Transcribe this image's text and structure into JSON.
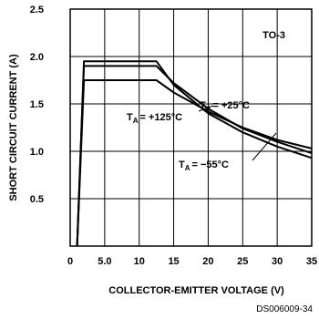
{
  "chart_data": {
    "type": "line",
    "title": "",
    "xlabel": "COLLECTOR-EMITTER VOLTAGE (V)",
    "ylabel": "SHORT CIRCUIT CURRENT (A)",
    "xlim": [
      0,
      35
    ],
    "ylim": [
      0,
      2.5
    ],
    "x_ticks": [
      0,
      5,
      10,
      15,
      20,
      25,
      30,
      35
    ],
    "x_tick_labels": [
      "0",
      "5.0",
      "10",
      "15",
      "20",
      "25",
      "30",
      "35"
    ],
    "y_ticks": [
      0,
      0.5,
      1.0,
      1.5,
      2.0,
      2.5
    ],
    "y_tick_labels": [
      "",
      "0.5",
      "1.0",
      "1.5",
      "2.0",
      "2.5"
    ],
    "grid": true,
    "package_label": "TO-3",
    "series": [
      {
        "name": "-55°C",
        "x": [
          1,
          2,
          12.5,
          15,
          20,
          25,
          30,
          35
        ],
        "y": [
          0,
          1.95,
          1.95,
          1.7,
          1.4,
          1.2,
          1.05,
          0.93
        ]
      },
      {
        "name": "+25°C",
        "x": [
          1,
          2,
          12.5,
          15,
          20,
          25,
          30,
          35
        ],
        "y": [
          0,
          1.9,
          1.9,
          1.72,
          1.45,
          1.24,
          1.1,
          0.98
        ]
      },
      {
        "name": "+125°C",
        "x": [
          1,
          2,
          12.5,
          15,
          20,
          25,
          30,
          35
        ],
        "y": [
          0,
          1.75,
          1.75,
          1.62,
          1.42,
          1.25,
          1.12,
          1.03
        ]
      }
    ],
    "annotations": [
      {
        "series": "+125°C",
        "text_main": "T",
        "text_sub": "A",
        "text_value": "= +125°C"
      },
      {
        "series": "+25°C",
        "text_main": "T",
        "text_sub": "A",
        "text_value": "= +25°C"
      },
      {
        "series": "-55°C",
        "text_main": "T",
        "text_sub": "A",
        "text_value": "= −55°C"
      }
    ],
    "reference": "DS006009-34"
  }
}
